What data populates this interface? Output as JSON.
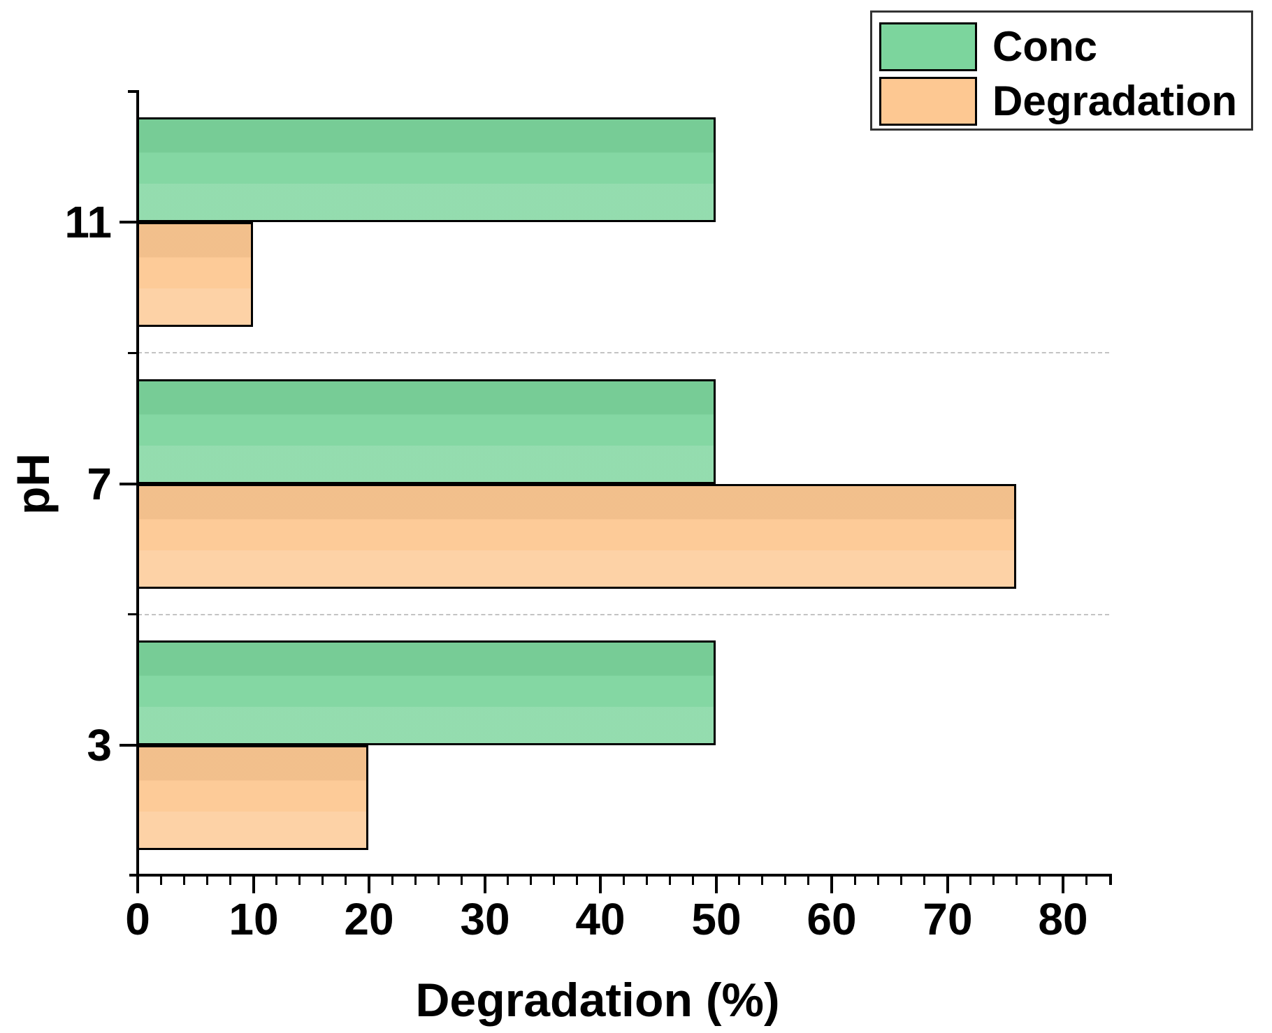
{
  "figure": {
    "background": "#ffffff"
  },
  "chart_data": {
    "type": "bar",
    "orientation": "horizontal",
    "title": "",
    "xlabel": "Degradation (%)",
    "ylabel": "pH",
    "categories": [
      "11",
      "7",
      "3"
    ],
    "series": [
      {
        "name": "Conc",
        "color": "#7cd59d",
        "values": [
          50,
          50,
          50
        ]
      },
      {
        "name": "Degradation",
        "color": "#fdc892",
        "values": [
          10,
          76,
          20
        ]
      }
    ],
    "xlim": [
      0,
      84
    ],
    "x_major_ticks": [
      0,
      10,
      20,
      30,
      40,
      50,
      60,
      70,
      80
    ],
    "x_minor_tick_step": 2,
    "grid": "dashed horizontal separators between category groups",
    "gridline_color": "#c3c3c3",
    "bar_border_color": "#000000",
    "axis_color": "#000000",
    "legend_position": "top-right",
    "legend_border_color": "#333333"
  }
}
